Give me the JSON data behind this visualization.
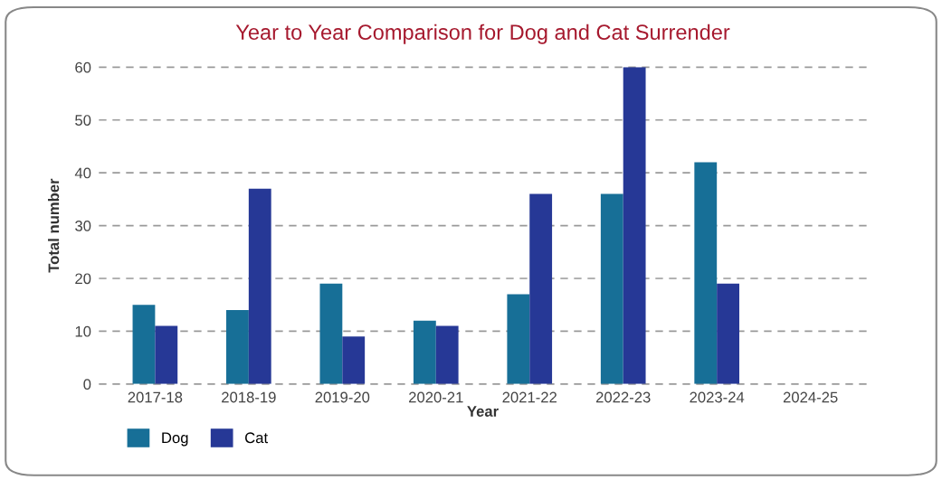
{
  "chart_data": {
    "type": "bar",
    "title": "Year to Year Comparison for Dog and Cat Surrender",
    "xlabel": "Year",
    "ylabel": "Total number",
    "categories": [
      "2017-18",
      "2018-19",
      "2019-20",
      "2020-21",
      "2021-22",
      "2022-23",
      "2023-24",
      "2024-25"
    ],
    "series": [
      {
        "name": "Dog",
        "color": "#176f97",
        "values": [
          15,
          14,
          19,
          12,
          17,
          36,
          42,
          null
        ]
      },
      {
        "name": "Cat",
        "color": "#263896",
        "values": [
          11,
          37,
          9,
          11,
          36,
          60,
          19,
          null
        ]
      }
    ],
    "ylim": [
      0,
      60
    ],
    "yticks": [
      0,
      10,
      20,
      30,
      40,
      50,
      60
    ],
    "grid": "y",
    "legend": "bottom left"
  }
}
